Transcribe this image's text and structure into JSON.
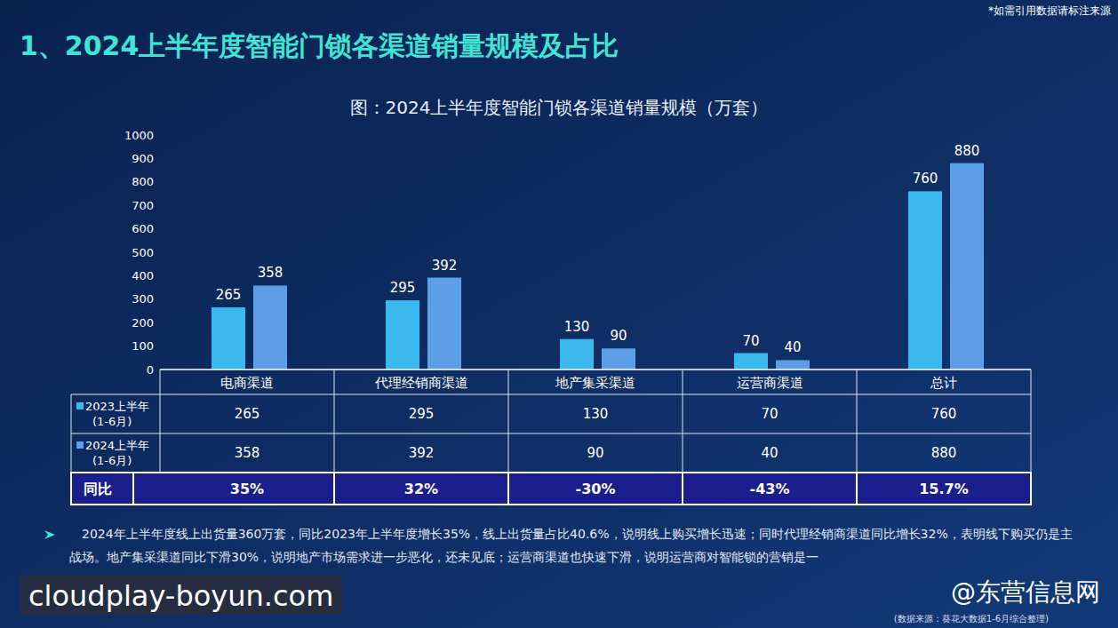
{
  "page": {
    "title": "1、2024上半年度智能门锁各渠道销量规模及占比",
    "note": "*如需引用数据请标注来源",
    "summary": "2024年上半年度线上出货量360万套，同比2023年上半年度增长35%，线上出货量占比40.6%，说明线上购买增长迅速；同时代理经销商渠道同比增长32%，表明线下购买仍是主战场。地产集采渠道同比下滑30%，说明地产市场需求进一步恶化，还未见底；运营商渠道也快速下滑，说明运营商对智能锁的营销是一",
    "watermark": "cloudplay-boyun.com",
    "brand": "@东营信息网",
    "source": "(数据来源：葵花大数据1-6月综合整理)"
  },
  "chart_data": {
    "type": "bar",
    "title": "图：2024上半年度智能门锁各渠道销量规模（万套）",
    "categories": [
      "电商渠道",
      "代理经销商渠道",
      "地产集采渠道",
      "运营商渠道",
      "总计"
    ],
    "series": [
      {
        "name": "2023上半年(1-6月)",
        "color": "#3bb9ee",
        "values": [
          265,
          295,
          130,
          70,
          760
        ]
      },
      {
        "name": "2024上半年(1-6月)",
        "color": "#5c9fe6",
        "values": [
          358,
          392,
          90,
          40,
          880
        ]
      }
    ],
    "ylim": [
      0,
      1000
    ],
    "yticks": [
      0,
      100,
      200,
      300,
      400,
      500,
      600,
      700,
      800,
      900,
      1000
    ],
    "grid": false,
    "data_labels": true,
    "legend": "bottom-left"
  },
  "table": {
    "yoy_label": "同比",
    "yoy": [
      "35%",
      "32%",
      "-30%",
      "-43%",
      "15.7%"
    ]
  }
}
